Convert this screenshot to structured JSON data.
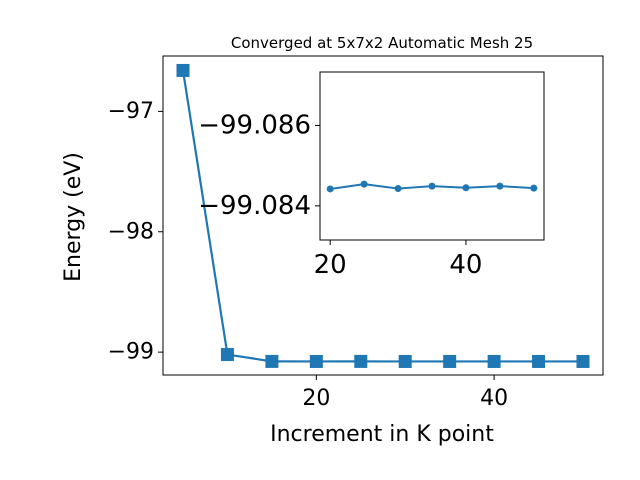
{
  "chart_data": [
    {
      "type": "line",
      "title": "Converged at 5x7x2 Automatic Mesh 25",
      "xlabel": "Increment in K point",
      "ylabel": "Energy (eV)",
      "x": [
        5,
        10,
        15,
        20,
        25,
        30,
        35,
        40,
        45,
        50
      ],
      "series": [
        {
          "values": [
            -96.66,
            -99.02,
            -99.077,
            -99.0775,
            -99.077,
            -99.0775,
            -99.0775,
            -99.0775,
            -99.0775,
            -99.0775
          ]
        }
      ],
      "xlim": [
        2.75,
        52.25
      ],
      "ylim": [
        -99.19,
        -96.54
      ],
      "xticks": [
        20,
        40
      ],
      "xtick_labels": [
        "20",
        "40"
      ],
      "yticks": [
        -97,
        -98,
        -99
      ],
      "ytick_labels": [
        "−97",
        "−98",
        "−99"
      ],
      "marker": "square",
      "color": "#1f77b4",
      "grid": false,
      "legend": "none"
    },
    {
      "type": "line",
      "role": "inset",
      "x": [
        20,
        25,
        30,
        35,
        40,
        45,
        50
      ],
      "series": [
        {
          "values": [
            -99.08442,
            -99.08454,
            -99.08443,
            -99.08449,
            -99.08445,
            -99.08449,
            -99.08444
          ]
        }
      ],
      "xlim": [
        18.5,
        51.5
      ],
      "ylim": [
        -99.08315,
        -99.08733
      ],
      "xticks": [
        20,
        40
      ],
      "xtick_labels": [
        "20",
        "40"
      ],
      "yticks": [
        -99.086,
        -99.084
      ],
      "ytick_labels": [
        "−99.086",
        "−99.084"
      ],
      "marker": "circle",
      "color": "#1f77b4",
      "grid": false,
      "legend": "none"
    }
  ]
}
